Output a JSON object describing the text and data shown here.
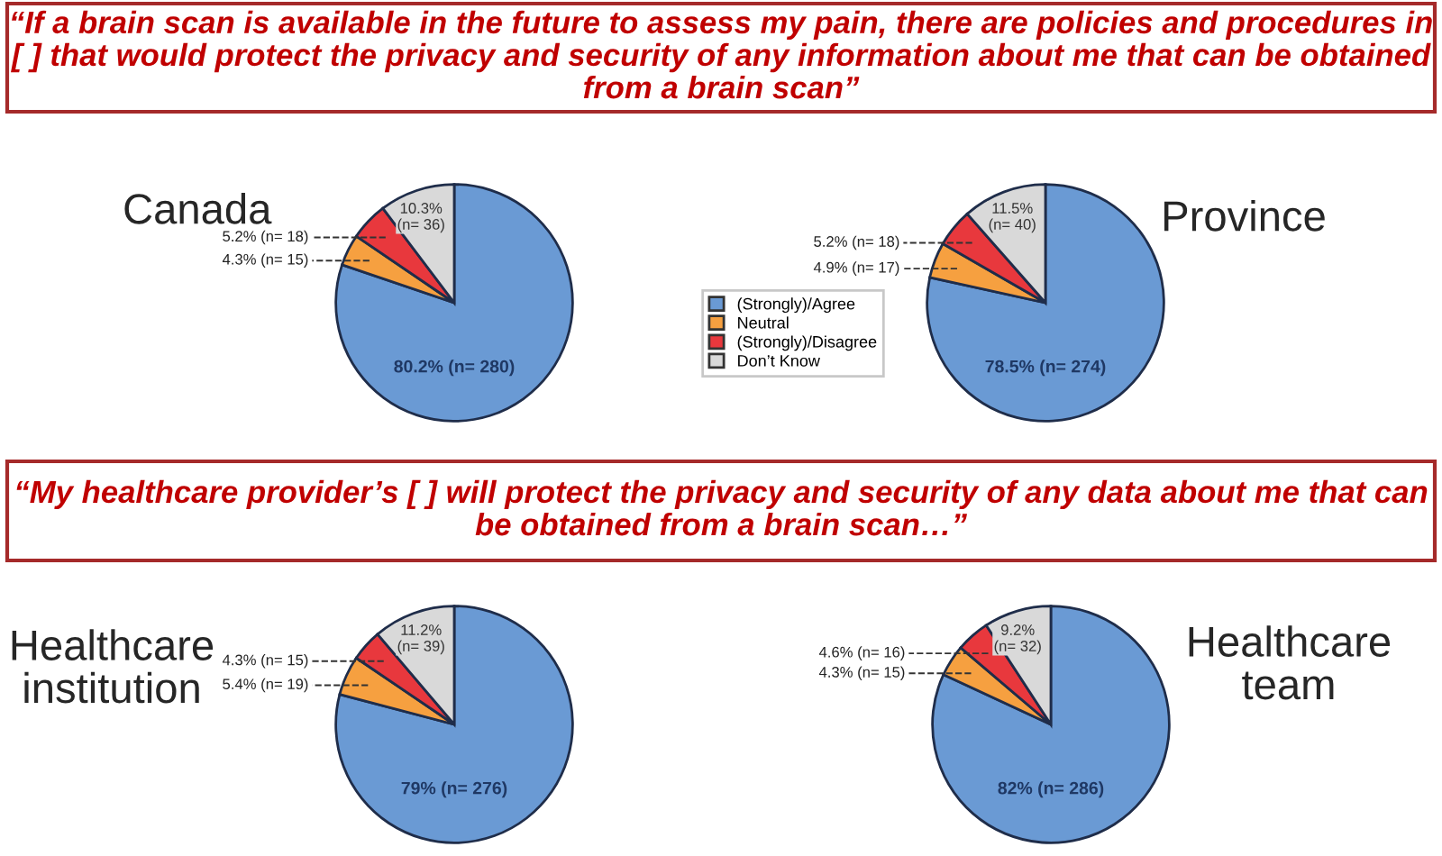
{
  "chart_data": [
    {
      "type": "pie",
      "title": "Canada",
      "annotations": [
        "“If a brain scan is available in the future to assess my pain, there are policies and procedures in [ ] that would protect the privacy and security of any information about me that can be obtained from a brain scan”"
      ],
      "categories": [
        "(Strongly)/Agree",
        "Neutral",
        "(Strongly)/Disagree",
        "Don’t Know"
      ],
      "values": [
        80.2,
        4.3,
        5.2,
        10.3
      ],
      "colors": [
        "#6a9ad4",
        "#f6a040",
        "#e8383d",
        "#d9d9d9"
      ],
      "value_labels": [
        "80.2% (n= 280)",
        "4.3% (n= 15)",
        "5.2% (n= 18)",
        "10.3%\n(n= 36)"
      ],
      "legend": "right"
    },
    {
      "type": "pie",
      "title": "Province",
      "values": [
        78.5,
        4.9,
        5.2,
        11.5
      ],
      "colors": [
        "#6a9ad4",
        "#f6a040",
        "#e8383d",
        "#d9d9d9"
      ],
      "value_labels": [
        "78.5% (n= 274)",
        "4.9% (n= 17)",
        "5.2% (n= 18)",
        "11.5%\n(n= 40)"
      ]
    },
    {
      "type": "pie",
      "title": "Healthcare\ninstitution",
      "annotations": [
        "“My healthcare provider’s [ ] will protect the privacy and security of any data about me that can be obtained from a brain scan…”"
      ],
      "values": [
        79,
        5.4,
        4.3,
        11.2
      ],
      "colors": [
        "#6a9ad4",
        "#f6a040",
        "#e8383d",
        "#d9d9d9"
      ],
      "value_labels": [
        "79% (n= 276)",
        "5.4% (n= 19)",
        "4.3% (n= 15)",
        "11.2%\n(n= 39)"
      ]
    },
    {
      "type": "pie",
      "title": "Healthcare\nteam",
      "values": [
        82,
        4.3,
        4.6,
        9.2
      ],
      "colors": [
        "#6a9ad4",
        "#f6a040",
        "#e8383d",
        "#d9d9d9"
      ],
      "value_labels": [
        "82% (n= 286)",
        "4.3% (n= 15)",
        "4.6% (n= 16)",
        "9.2%\n(n= 32)"
      ]
    }
  ]
}
